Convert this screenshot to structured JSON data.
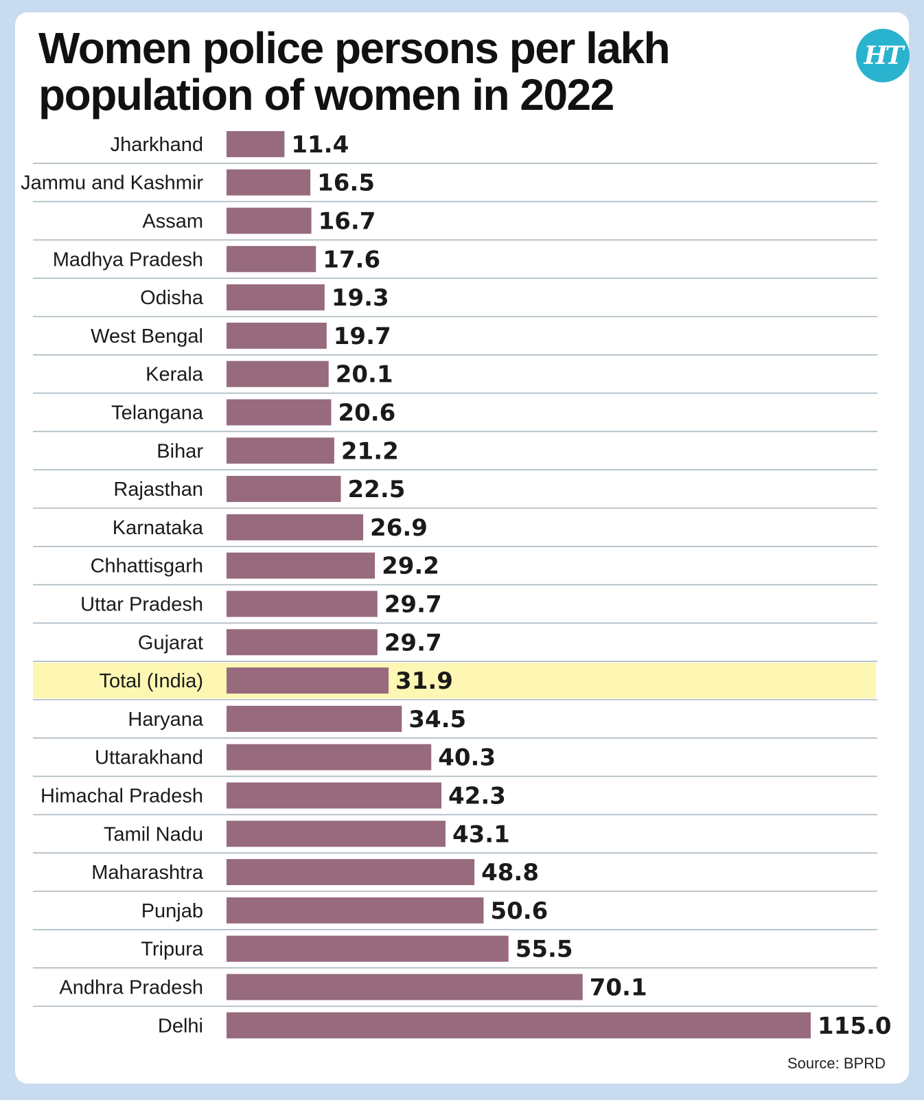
{
  "header": {
    "title": "Women police persons per lakh population of women in 2022",
    "logo_text": "HT"
  },
  "source": "Source: BPRD",
  "colors": {
    "bar": "#976a7e",
    "highlight": "#fdf7b3",
    "divider": "#a9b6bf",
    "logo": "#29b3cf",
    "background": "#c9dcef"
  },
  "chart_data": {
    "type": "bar",
    "orientation": "horizontal",
    "categories": [
      "Jharkhand",
      "Jammu and Kashmir",
      "Assam",
      "Madhya Pradesh",
      "Odisha",
      "West Bengal",
      "Kerala",
      "Telangana",
      "Bihar",
      "Rajasthan",
      "Karnataka",
      "Chhattisgarh",
      "Uttar Pradesh",
      "Gujarat",
      "Total (India)",
      "Haryana",
      "Uttarakhand",
      "Himachal Pradesh",
      "Tamil Nadu",
      "Maharashtra",
      "Punjab",
      "Tripura",
      "Andhra Pradesh",
      "Delhi"
    ],
    "values": [
      11.4,
      16.5,
      16.7,
      17.6,
      19.3,
      19.7,
      20.1,
      20.6,
      21.2,
      22.5,
      26.9,
      29.2,
      29.7,
      29.7,
      31.9,
      34.5,
      40.3,
      42.3,
      43.1,
      48.8,
      50.6,
      55.5,
      70.1,
      115.0
    ],
    "value_labels": [
      "11.4",
      "16.5",
      "16.7",
      "17.6",
      "19.3",
      "19.7",
      "20.1",
      "20.6",
      "21.2",
      "22.5",
      "26.9",
      "29.2",
      "29.7",
      "29.7",
      "31.9",
      "34.5",
      "40.3",
      "42.3",
      "43.1",
      "48.8",
      "50.6",
      "55.5",
      "70.1",
      "115.0"
    ],
    "highlight": "Total (India)",
    "title": "Women police persons per lakh population of women in 2022",
    "xlabel": "",
    "ylabel": "",
    "xlim": [
      0,
      115
    ]
  }
}
